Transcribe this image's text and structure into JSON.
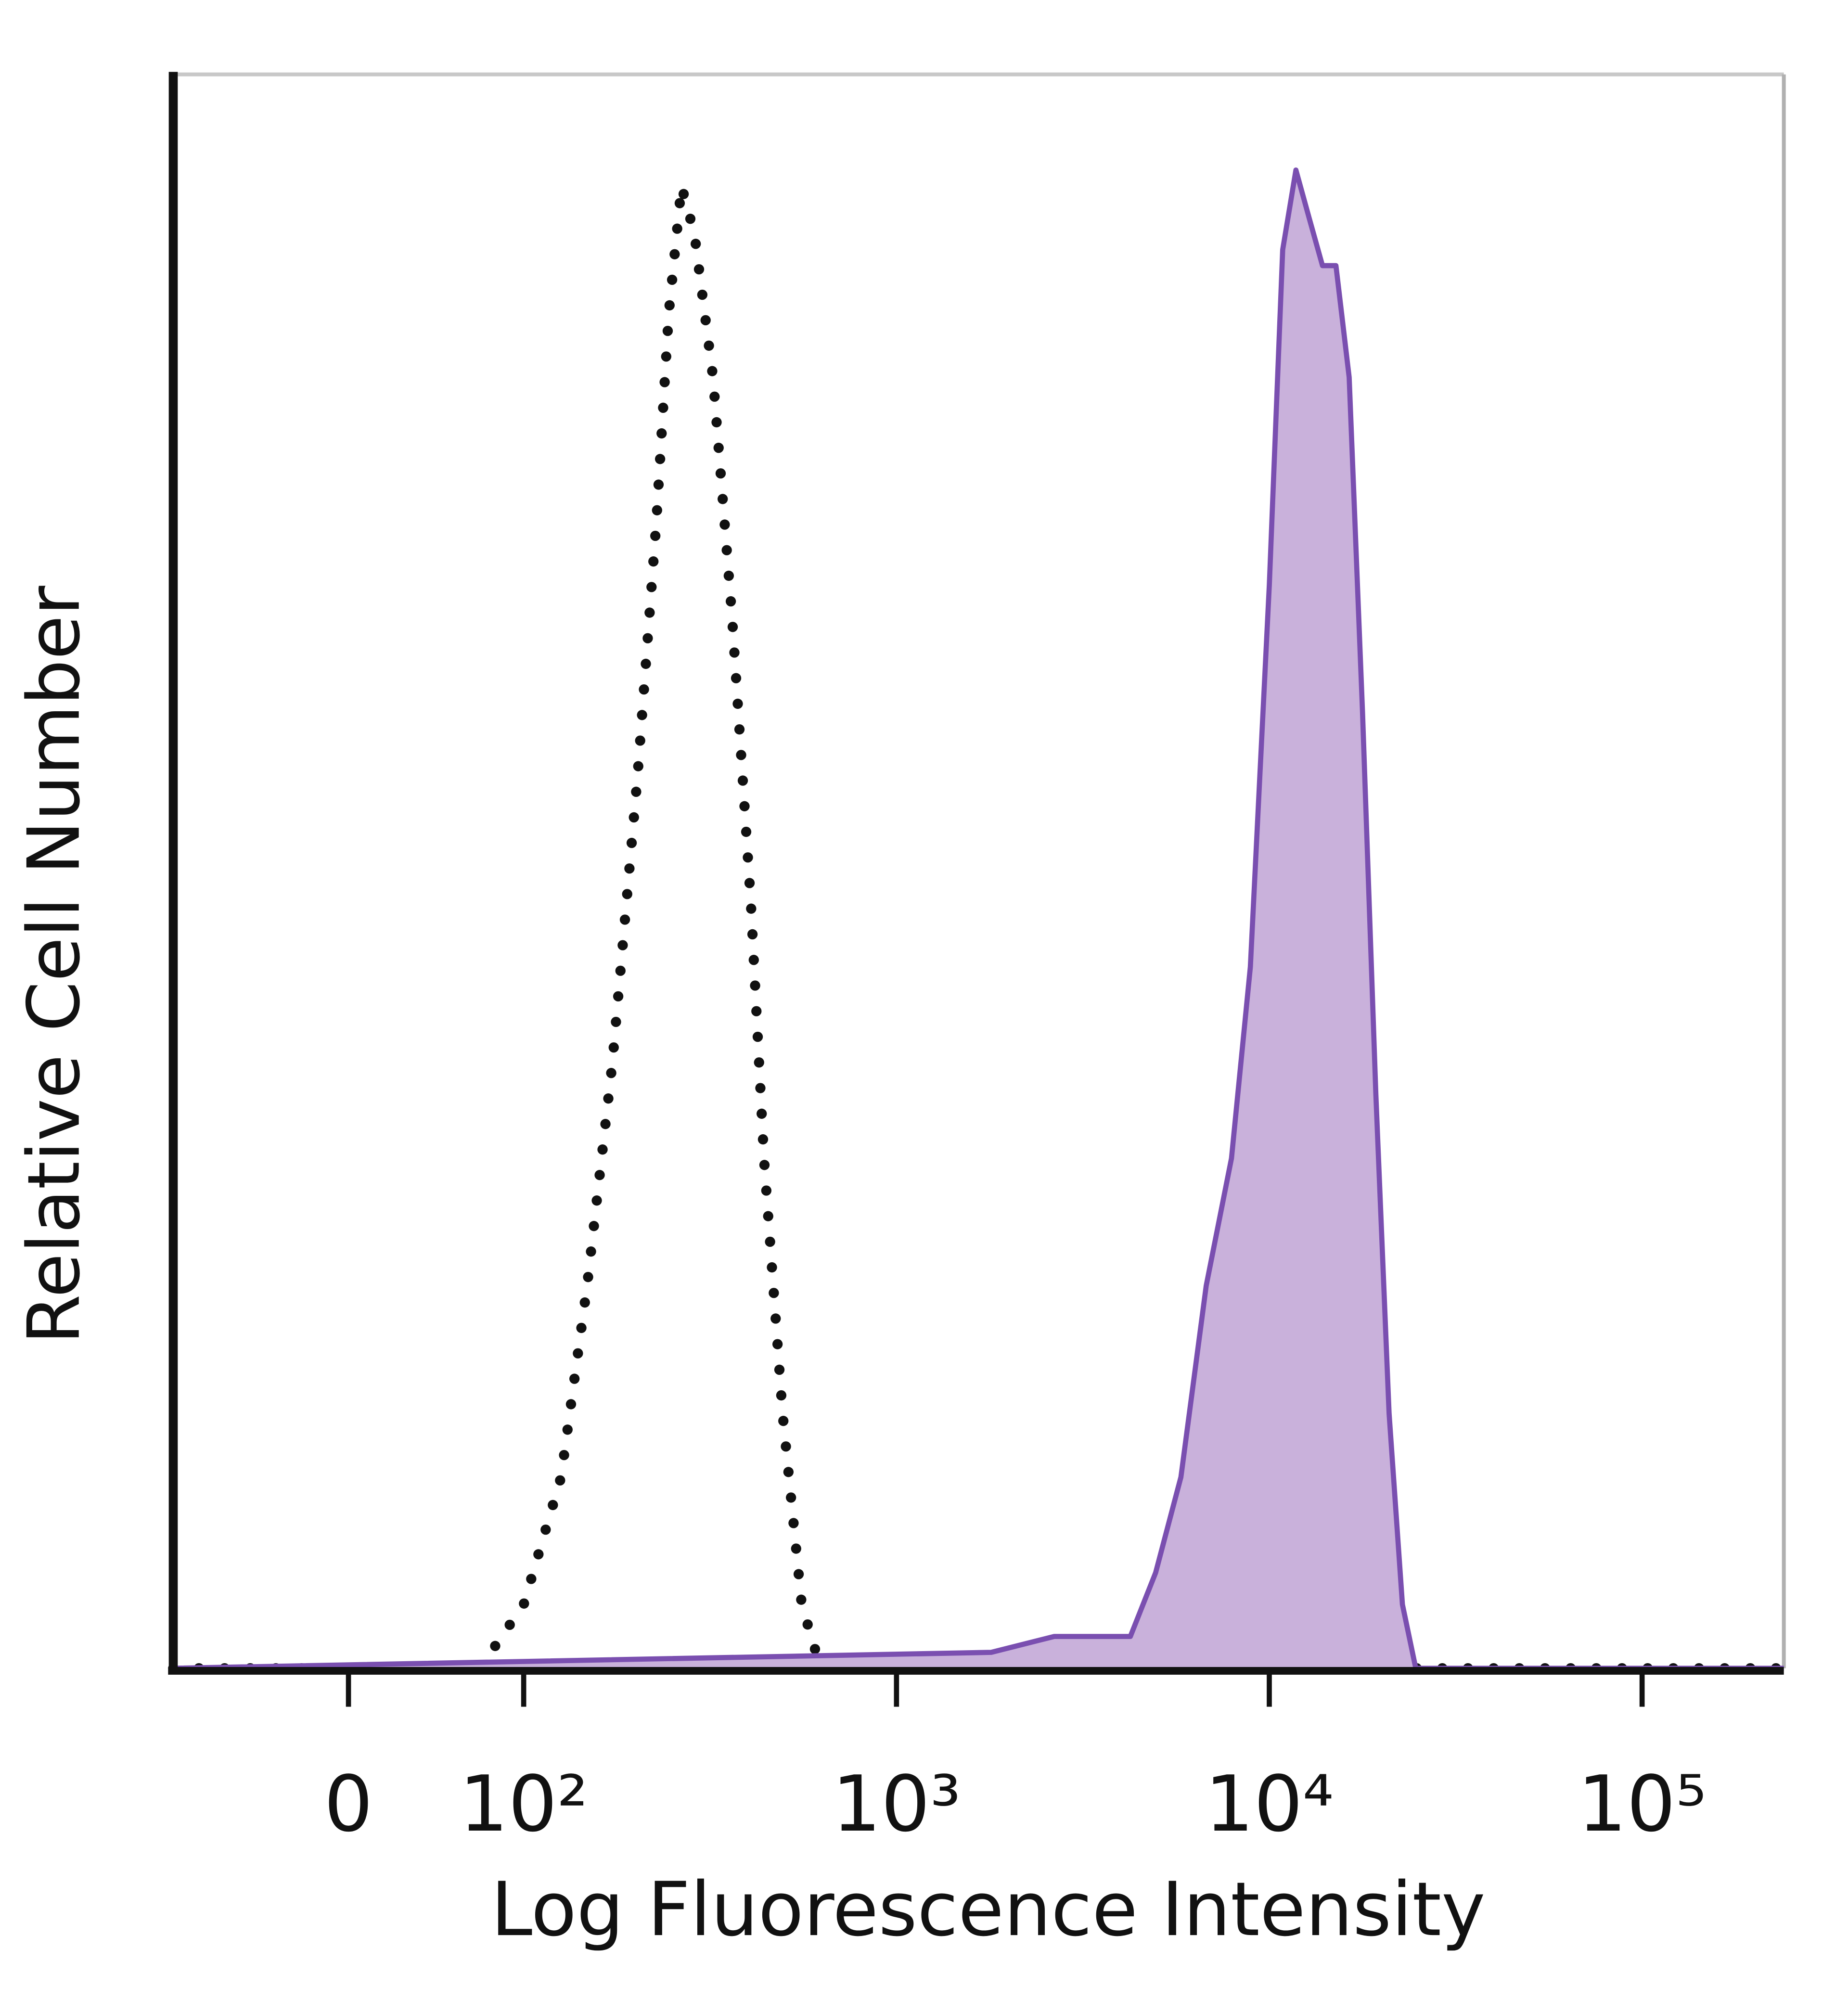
{
  "chart_data": {
    "type": "histogram-overlay",
    "x_label": "Log Fluorescence Intensity",
    "y_label": "Relative Cell Number",
    "xscale": "biexponential",
    "xlim": [
      -100,
      240000
    ],
    "xticks": [
      {
        "value": 0,
        "label": "0"
      },
      {
        "value": 100,
        "label": "10²"
      },
      {
        "value": 1000,
        "label": "10³"
      },
      {
        "value": 10000,
        "label": "10⁴"
      },
      {
        "value": 100000,
        "label": "10⁵"
      }
    ],
    "ylim": [
      0,
      100
    ],
    "series": [
      {
        "color": "#111111",
        "style": "dotted",
        "fill": false,
        "x": [
          -100,
          75,
          100,
          126,
          148,
          173,
          202,
          227,
          245,
          265,
          287,
          322,
          362,
          407,
          441,
          495,
          557,
          626,
          240000
        ],
        "values": [
          0,
          0,
          4,
          12,
          24,
          38,
          56,
          72,
          85,
          93,
          90,
          81,
          66,
          48,
          32,
          16,
          4,
          0,
          0
        ]
      },
      {
        "color": "#7a4fb0",
        "fill_color": "#c9b1db",
        "style": "solid",
        "fill": true,
        "x": [
          -100,
          1795,
          2650,
          3625,
          4240,
          4955,
          5795,
          6775,
          7915,
          8895,
          10000,
          10860,
          11790,
          12790,
          13890,
          15090,
          16380,
          17780,
          19310,
          20960,
          22750,
          24710,
          240000
        ],
        "values": [
          0,
          1,
          2,
          2,
          2,
          6,
          12,
          24,
          32,
          44,
          68,
          89,
          94,
          91,
          88,
          88,
          81,
          60,
          36,
          16,
          4,
          0,
          0
        ]
      }
    ]
  }
}
